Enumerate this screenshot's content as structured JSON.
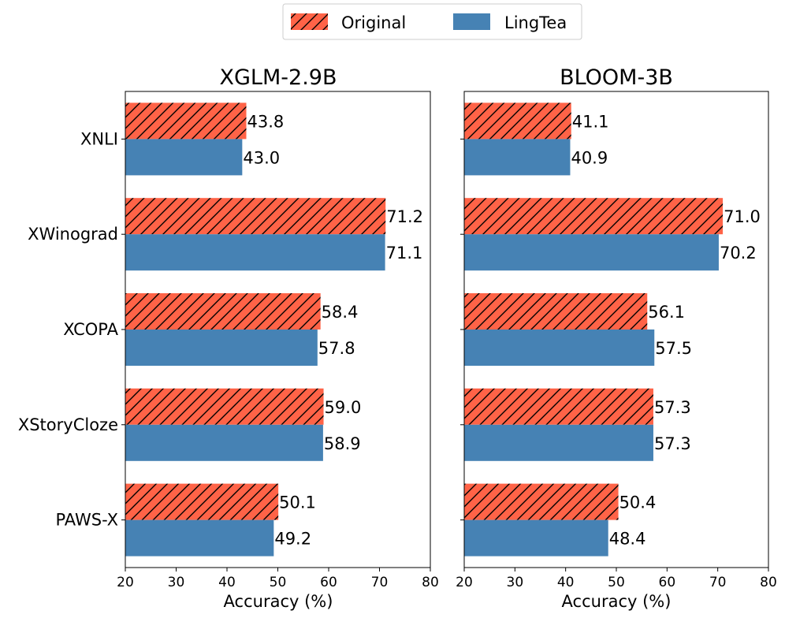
{
  "legend": {
    "entries": [
      {
        "name": "Original",
        "color": "#ff6347",
        "pattern": "hatch"
      },
      {
        "name": "LingTea",
        "color": "#4682b4",
        "pattern": "solid"
      }
    ],
    "position": "top-center"
  },
  "chart_data": [
    {
      "type": "bar",
      "orientation": "horizontal",
      "title": "XGLM-2.9B",
      "xlabel": "Accuracy (%)",
      "ylabel": "",
      "xlim": [
        20,
        80
      ],
      "xticks": [
        20,
        30,
        40,
        50,
        60,
        70,
        80
      ],
      "categories": [
        "XNLI",
        "XWinograd",
        "XCOPA",
        "XStoryCloze",
        "PAWS-X"
      ],
      "series": [
        {
          "name": "Original",
          "values": [
            43.8,
            71.2,
            58.4,
            59.0,
            50.1
          ],
          "labels": [
            "43.8",
            "71.2",
            "58.4",
            "59.0",
            "50.1"
          ]
        },
        {
          "name": "LingTea",
          "values": [
            43.0,
            71.1,
            57.8,
            58.9,
            49.2
          ],
          "labels": [
            "43.0",
            "71.1",
            "57.8",
            "58.9",
            "49.2"
          ]
        }
      ],
      "show_category_labels": true
    },
    {
      "type": "bar",
      "orientation": "horizontal",
      "title": "BLOOM-3B",
      "xlabel": "Accuracy (%)",
      "ylabel": "",
      "xlim": [
        20,
        80
      ],
      "xticks": [
        20,
        30,
        40,
        50,
        60,
        70,
        80
      ],
      "categories": [
        "XNLI",
        "XWinograd",
        "XCOPA",
        "XStoryCloze",
        "PAWS-X"
      ],
      "series": [
        {
          "name": "Original",
          "values": [
            41.1,
            71.0,
            56.1,
            57.3,
            50.4
          ],
          "labels": [
            "41.1",
            "71.0",
            "56.1",
            "57.3",
            "50.4"
          ]
        },
        {
          "name": "LingTea",
          "values": [
            40.9,
            70.2,
            57.5,
            57.3,
            48.4
          ],
          "labels": [
            "40.9",
            "70.2",
            "57.5",
            "57.3",
            "48.4"
          ]
        }
      ],
      "show_category_labels": false
    }
  ]
}
